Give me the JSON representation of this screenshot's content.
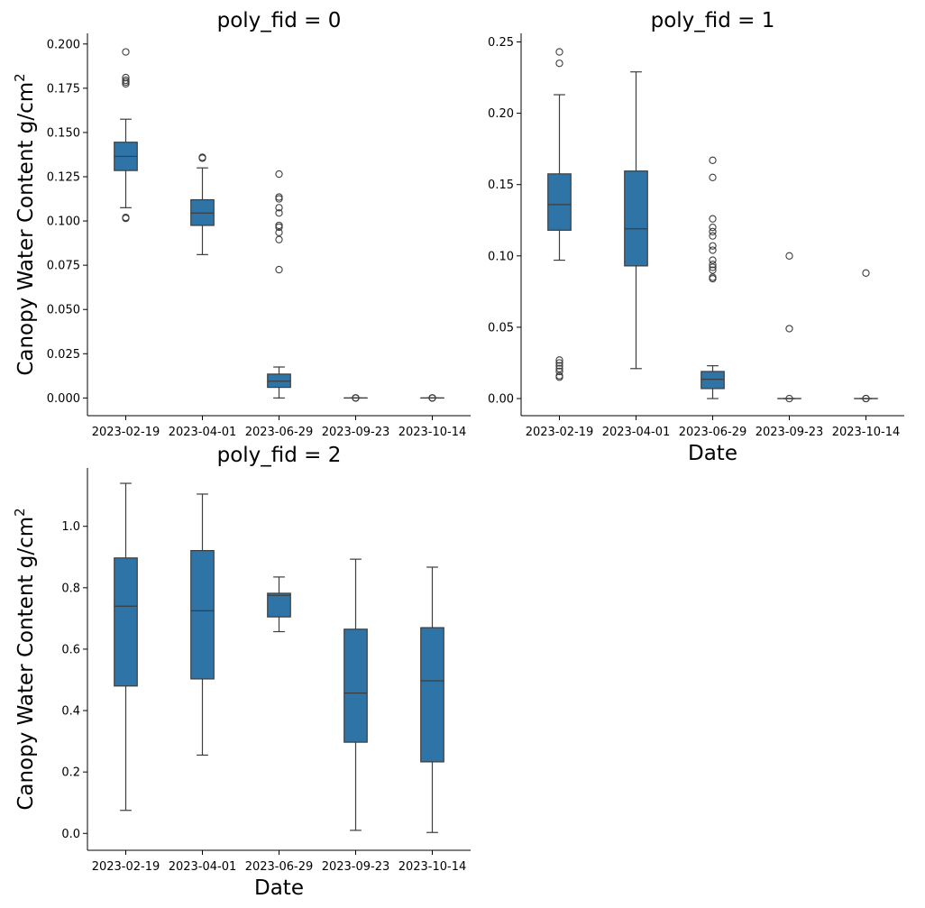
{
  "chart_data": [
    {
      "type": "box",
      "title": "poly_fid = 0",
      "xlabel": "",
      "ylabel": "Canopy Water Content g/cm",
      "ylabel_superscript": "2",
      "categories": [
        "2023-02-19",
        "2023-04-01",
        "2023-06-29",
        "2023-09-23",
        "2023-10-14"
      ],
      "ylim": [
        -0.01,
        0.206
      ],
      "yticks": [
        0.0,
        0.025,
        0.05,
        0.075,
        0.1,
        0.125,
        0.15,
        0.175,
        0.2
      ],
      "ytick_labels": [
        "0.000",
        "0.025",
        "0.050",
        "0.075",
        "0.100",
        "0.125",
        "0.150",
        "0.175",
        "0.200"
      ],
      "boxes": [
        {
          "whislo": 0.1075,
          "q1": 0.1285,
          "med": 0.1365,
          "q3": 0.1445,
          "whishi": 0.1575,
          "fliers": [
            0.1955,
            0.181,
            0.1795,
            0.1785,
            0.1775,
            0.102,
            0.1015
          ]
        },
        {
          "whislo": 0.081,
          "q1": 0.0975,
          "med": 0.1045,
          "q3": 0.112,
          "whishi": 0.13,
          "fliers": [
            0.136,
            0.1355
          ]
        },
        {
          "whislo": 0.0,
          "q1": 0.006,
          "med": 0.0095,
          "q3": 0.0135,
          "whishi": 0.0175,
          "fliers": [
            0.1265,
            0.1135,
            0.1125,
            0.1075,
            0.1045,
            0.0975,
            0.0965,
            0.0935,
            0.0895,
            0.0725
          ]
        },
        {
          "whislo": 0.0,
          "q1": 0.0,
          "med": 0.0,
          "q3": 0.0,
          "whishi": 0.0,
          "fliers": [
            0.0,
            0.0,
            0.0
          ]
        },
        {
          "whislo": 0.0,
          "q1": 0.0,
          "med": 0.0,
          "q3": 0.0,
          "whishi": 0.0,
          "fliers": [
            0.0,
            0.0,
            0.0
          ]
        }
      ]
    },
    {
      "type": "box",
      "title": "poly_fid = 1",
      "xlabel": "Date",
      "ylabel": "",
      "ylabel_superscript": "",
      "categories": [
        "2023-02-19",
        "2023-04-01",
        "2023-06-29",
        "2023-09-23",
        "2023-10-14"
      ],
      "ylim": [
        -0.012,
        0.256
      ],
      "yticks": [
        0.0,
        0.05,
        0.1,
        0.15,
        0.2,
        0.25
      ],
      "ytick_labels": [
        "0.00",
        "0.05",
        "0.10",
        "0.15",
        "0.20",
        "0.25"
      ],
      "boxes": [
        {
          "whislo": 0.097,
          "q1": 0.118,
          "med": 0.136,
          "q3": 0.1575,
          "whishi": 0.213,
          "fliers": [
            0.243,
            0.235,
            0.027,
            0.025,
            0.023,
            0.021,
            0.019,
            0.016,
            0.015
          ]
        },
        {
          "whislo": 0.021,
          "q1": 0.093,
          "med": 0.119,
          "q3": 0.1595,
          "whishi": 0.229,
          "fliers": []
        },
        {
          "whislo": 0.0,
          "q1": 0.007,
          "med": 0.0135,
          "q3": 0.019,
          "whishi": 0.023,
          "fliers": [
            0.167,
            0.155,
            0.126,
            0.12,
            0.117,
            0.114,
            0.107,
            0.104,
            0.097,
            0.094,
            0.092,
            0.09,
            0.085,
            0.084
          ]
        },
        {
          "whislo": 0.0,
          "q1": 0.0,
          "med": 0.0,
          "q3": 0.0,
          "whishi": 0.0,
          "fliers": [
            0.1,
            0.049,
            0.0
          ]
        },
        {
          "whislo": 0.0,
          "q1": 0.0,
          "med": 0.0,
          "q3": 0.0,
          "whishi": 0.0,
          "fliers": [
            0.088,
            0.0,
            0.0
          ]
        }
      ]
    },
    {
      "type": "box",
      "title": "poly_fid = 2",
      "xlabel": "Date",
      "ylabel": "Canopy Water Content g/cm",
      "ylabel_superscript": "2",
      "categories": [
        "2023-02-19",
        "2023-04-01",
        "2023-06-29",
        "2023-09-23",
        "2023-10-14"
      ],
      "ylim": [
        -0.055,
        1.19
      ],
      "yticks": [
        0.0,
        0.2,
        0.4,
        0.6,
        0.8,
        1.0
      ],
      "ytick_labels": [
        "0.0",
        "0.2",
        "0.4",
        "0.6",
        "0.8",
        "1.0"
      ],
      "boxes": [
        {
          "whislo": 0.075,
          "q1": 0.48,
          "med": 0.74,
          "q3": 0.897,
          "whishi": 1.14,
          "fliers": []
        },
        {
          "whislo": 0.255,
          "q1": 0.503,
          "med": 0.725,
          "q3": 0.921,
          "whishi": 1.105,
          "fliers": []
        },
        {
          "whislo": 0.657,
          "q1": 0.705,
          "med": 0.775,
          "q3": 0.782,
          "whishi": 0.835,
          "fliers": []
        },
        {
          "whislo": 0.01,
          "q1": 0.297,
          "med": 0.457,
          "q3": 0.665,
          "whishi": 0.893,
          "fliers": []
        },
        {
          "whislo": 0.003,
          "q1": 0.233,
          "med": 0.497,
          "q3": 0.67,
          "whishi": 0.867,
          "fliers": []
        }
      ]
    }
  ],
  "style": {
    "box_fill": "#2f74a7",
    "line_color": "#3d3d3d",
    "axis_color": "#000000"
  }
}
